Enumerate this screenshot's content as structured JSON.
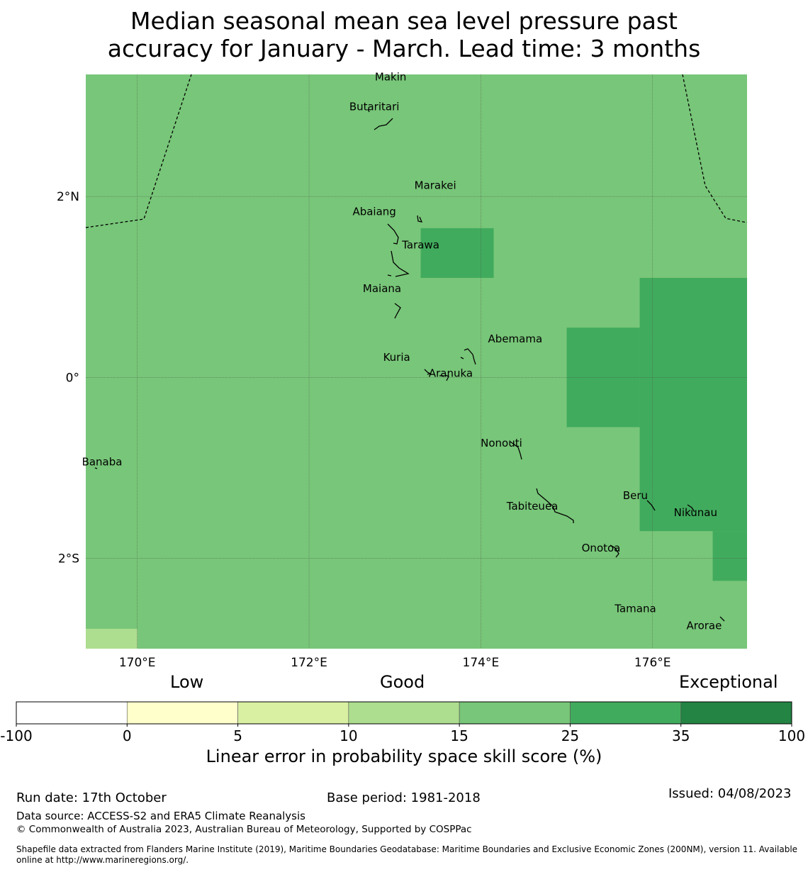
{
  "title": {
    "line1": "Median seasonal mean sea level pressure past",
    "line2": "accuracy for January - March. Lead time: 3 months"
  },
  "map": {
    "lon_range": [
      169.4,
      177.1
    ],
    "lat_range": [
      -3.0,
      3.35
    ],
    "colors": {
      "good": "#78c679",
      "very_good": "#41ab5d",
      "moderate": "#addd8e",
      "grid": "#444444",
      "boundary": "#000000"
    },
    "lon_ticks": [
      {
        "value": 170,
        "label": "170°E"
      },
      {
        "value": 172,
        "label": "172°E"
      },
      {
        "value": 174,
        "label": "174°E"
      },
      {
        "value": 176,
        "label": "176°E"
      }
    ],
    "lat_ticks": [
      {
        "value": 2,
        "label": "2°N"
      },
      {
        "value": 0,
        "label": "0°"
      },
      {
        "value": -2,
        "label": "2°S"
      }
    ],
    "cells": [
      {
        "lon": [
          173.3,
          174.15
        ],
        "lat": [
          1.1,
          1.65
        ],
        "score_class": "very_good"
      },
      {
        "lon": [
          175.85,
          177.1
        ],
        "lat": [
          -1.7,
          1.1
        ],
        "score_class": "very_good"
      },
      {
        "lon": [
          175.0,
          175.85
        ],
        "lat": [
          -0.55,
          0.55
        ],
        "score_class": "very_good"
      },
      {
        "lon": [
          176.7,
          177.1
        ],
        "lat": [
          -2.25,
          -1.7
        ],
        "score_class": "very_good"
      },
      {
        "lon": [
          169.4,
          170.0
        ],
        "lat": [
          -3.0,
          -2.78
        ],
        "score_class": "moderate"
      }
    ],
    "islands": [
      {
        "name": "Makin",
        "lon": 172.95,
        "lat": 3.32
      },
      {
        "name": "Butaritari",
        "lon": 172.76,
        "lat": 2.99
      },
      {
        "name": "Marakei",
        "lon": 173.47,
        "lat": 2.12
      },
      {
        "name": "Abaiang",
        "lon": 172.76,
        "lat": 1.83
      },
      {
        "name": "Tarawa",
        "lon": 173.3,
        "lat": 1.46
      },
      {
        "name": "Maiana",
        "lon": 172.85,
        "lat": 0.98
      },
      {
        "name": "Abemama",
        "lon": 174.4,
        "lat": 0.42
      },
      {
        "name": "Kuria",
        "lon": 173.02,
        "lat": 0.22
      },
      {
        "name": "Aranuka",
        "lon": 173.65,
        "lat": 0.04
      },
      {
        "name": "Nonouti",
        "lon": 174.24,
        "lat": -0.73
      },
      {
        "name": "Banaba",
        "lon": 169.59,
        "lat": -0.94
      },
      {
        "name": "Beru",
        "lon": 175.8,
        "lat": -1.31
      },
      {
        "name": "Tabiteuea",
        "lon": 174.6,
        "lat": -1.43
      },
      {
        "name": "Nikunau",
        "lon": 176.5,
        "lat": -1.5
      },
      {
        "name": "Onotoa",
        "lon": 175.4,
        "lat": -1.89
      },
      {
        "name": "Tamana",
        "lon": 175.8,
        "lat": -2.56
      },
      {
        "name": "Arorae",
        "lon": 176.6,
        "lat": -2.75
      }
    ]
  },
  "legend": {
    "categories": [
      {
        "label": "Low"
      },
      {
        "label": "Good"
      },
      {
        "label": "Exceptional"
      }
    ],
    "bins": [
      {
        "color": "#ffffff"
      },
      {
        "color": "#ffffcc"
      },
      {
        "color": "#d9f0a3"
      },
      {
        "color": "#addd8e"
      },
      {
        "color": "#78c679"
      },
      {
        "color": "#41ab5d"
      },
      {
        "color": "#238443"
      }
    ],
    "ticks": [
      "-100",
      "0",
      "5",
      "10",
      "15",
      "25",
      "35",
      "100"
    ],
    "label": "Linear error in probability space skill score (%)"
  },
  "footer": {
    "run_date": "Run date: 17th October",
    "base_period": "Base period: 1981-2018",
    "issued": "Issued: 04/08/2023",
    "data_source": "Data source: ACCESS-S2 and ERA5 Climate Reanalysis",
    "copyright": "© Commonwealth of Australia 2023, Australian Bureau of Meteorology, Supported by COSPPac",
    "shapefile_line1": "Shapefile data extracted from Flanders Marine Institute (2019), Maritime Boundaries Geodatabase: Maritime Boundaries and Exclusive Economic Zones (200NM), version 11. Available",
    "shapefile_line2": "online at http://www.marineregions.org/."
  }
}
